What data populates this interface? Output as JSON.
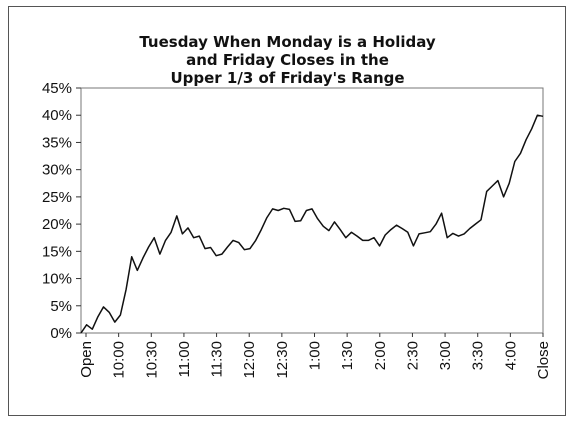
{
  "chart_data": {
    "type": "line",
    "title": "Tuesday When Monday is a Holiday\nand Friday Closes in the\nUpper 1/3 of Friday's Range",
    "xlabel": "",
    "ylabel": "",
    "ylim": [
      0,
      45
    ],
    "y_ticks": [
      "0%",
      "5%",
      "10%",
      "15%",
      "20%",
      "25%",
      "30%",
      "35%",
      "40%",
      "45%"
    ],
    "x_tick_labels": [
      "Open",
      "10:00",
      "10:30",
      "11:00",
      "11:30",
      "12:00",
      "12:30",
      "1:00",
      "1:30",
      "2:00",
      "2:30",
      "3:00",
      "3:30",
      "4:00",
      "Close"
    ],
    "grid": false,
    "legend": "none",
    "line_color": "#111111",
    "series": [
      {
        "values": [
          0,
          1.5,
          0.7,
          3.0,
          4.8,
          3.8,
          2.0,
          3.3,
          8.0,
          14.0,
          11.5,
          13.8,
          15.8,
          17.5,
          14.5,
          17.0,
          18.5,
          21.5,
          18.2,
          19.3,
          17.5,
          17.8,
          15.5,
          15.7,
          14.2,
          14.5,
          15.8,
          17.0,
          16.6,
          15.3,
          15.5,
          17.0,
          19.0,
          21.2,
          22.8,
          22.5,
          22.9,
          22.7,
          20.5,
          20.6,
          22.5,
          22.8,
          21.0,
          19.6,
          18.8,
          20.4,
          19.0,
          17.5,
          18.5,
          17.8,
          17.0,
          17.0,
          17.5,
          16.0,
          18.0,
          19.0,
          19.8,
          19.2,
          18.5,
          16.0,
          18.2,
          18.4,
          18.6,
          20.0,
          22.0,
          17.5,
          18.3,
          17.8,
          18.2,
          19.2,
          20.0,
          20.8,
          26.0,
          27.0,
          28.0,
          25.0,
          27.5,
          31.5,
          33.0,
          35.5,
          37.5,
          40.0,
          39.8
        ]
      }
    ]
  }
}
